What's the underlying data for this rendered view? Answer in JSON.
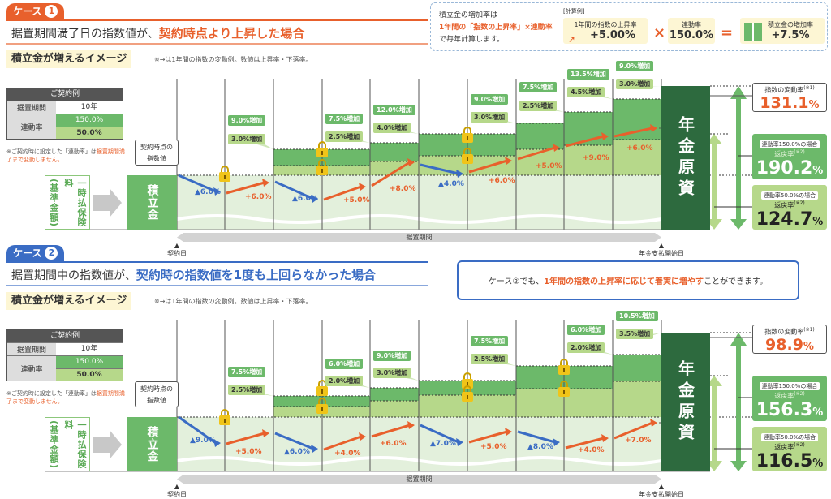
{
  "top_box": {
    "line1": "積立金の増加率は",
    "line2": "1年間の「指数の上昇率」×連動率",
    "line3": "で毎年計算します。",
    "calc_label": "[計算例]",
    "term1_label": "1年間の指数の上昇率",
    "term1_value": "+5.00%",
    "times": "×",
    "term2_label": "連動率",
    "term2_value": "150.0%",
    "equals": "=",
    "result_label": "積立金の増加率",
    "result_value": "+7.5%"
  },
  "case2_message": {
    "a": "ケース②でも、",
    "b": "1年間の指数の上昇率に応じて着実に増やす",
    "c": "ことができます。"
  },
  "colors": {
    "orange": "#e8602c",
    "blue": "#3a6cc4",
    "dark_green": "#2d6a3e",
    "green": "#6cb96a",
    "light_green": "#b6d88a",
    "pale_green": "#e3f0dc",
    "lock": "#f0c419"
  },
  "cases": [
    {
      "tab": "ケース",
      "num": "1",
      "title_prefix": "据置期間満了日の指数値が、",
      "title_highlight": "契約時点より上昇した場合",
      "subtitle": "積立金が増えるイメージ",
      "note": "※→は1年間の指数の変動例。数値は上昇率・下落率。",
      "contract": {
        "header": "ご契約例",
        "period_label": "据置期間",
        "period_value": "10年",
        "rate_label": "連動率",
        "rate_high": "150.0%",
        "rate_low": "50.0%",
        "foot_a": "※ご契約時に設定した「連動率」は",
        "foot_b": "据置期間満了まで変動しません。"
      },
      "start_index_a": "契約時点の",
      "start_index_b": "指数値",
      "premium_label": "一時払保険料",
      "premium_sub": "(基準金額)",
      "accum_label": "積立金",
      "annuity_label": "年金原資",
      "yearly_changes": [
        "▲6.0%",
        "+6.0%",
        "▲6.0%",
        "+5.0%",
        "+8.0%",
        "▲4.0%",
        "+6.0%",
        "+5.0%",
        "+9.0%",
        "+6.0%"
      ],
      "increases": [
        {
          "year": 2,
          "high": "9.0%増加",
          "low": "3.0%増加"
        },
        {
          "year": 4,
          "high": "7.5%増加",
          "low": "2.5%増加"
        },
        {
          "year": 5,
          "high": "12.0%増加",
          "low": "4.0%増加"
        },
        {
          "year": 7,
          "high": "9.0%増加",
          "low": "3.0%増加"
        },
        {
          "year": 8,
          "high": "7.5%増加",
          "low": "2.5%増加"
        },
        {
          "year": 9,
          "high": "13.5%増加",
          "low": "4.5%増加"
        },
        {
          "year": 10,
          "high": "9.0%増加",
          "low": "3.0%増加"
        }
      ],
      "index_change": {
        "label": "指数の変動率",
        "note": "(※1)",
        "value": "131.1",
        "unit": "%"
      },
      "return_high": {
        "label": "連動率150.0%の場合",
        "title": "返戻率",
        "note": "(※2)",
        "value": "190.2",
        "unit": "%"
      },
      "return_low": {
        "label": "連動率50.0%の場合",
        "title": "返戻率",
        "note": "(※2)",
        "value": "124.7",
        "unit": "%"
      },
      "period_bar": "据置期間",
      "start_date": "契約日",
      "end_date": "年金支払開始日"
    },
    {
      "tab": "ケース",
      "num": "2",
      "title_prefix": "据置期間中の指数値が、",
      "title_highlight": "契約時の指数値を1度も上回らなかった場合",
      "subtitle": "積立金が増えるイメージ",
      "note": "※→は1年間の指数の変動例。数値は上昇率・下落率。",
      "contract": {
        "header": "ご契約例",
        "period_label": "据置期間",
        "period_value": "10年",
        "rate_label": "連動率",
        "rate_high": "150.0%",
        "rate_low": "50.0%",
        "foot_a": "※ご契約時に設定した「連動率」は",
        "foot_b": "据置期間満了まで変動しません。"
      },
      "start_index_a": "契約時点の",
      "start_index_b": "指数値",
      "premium_label": "一時払保険料",
      "premium_sub": "(基準金額)",
      "accum_label": "積立金",
      "annuity_label": "年金原資",
      "yearly_changes": [
        "▲9.0%",
        "+5.0%",
        "▲6.0%",
        "+4.0%",
        "+6.0%",
        "▲7.0%",
        "+5.0%",
        "▲8.0%",
        "+4.0%",
        "+7.0%"
      ],
      "increases": [
        {
          "year": 2,
          "high": "7.5%増加",
          "low": "2.5%増加"
        },
        {
          "year": 4,
          "high": "6.0%増加",
          "low": "2.0%増加"
        },
        {
          "year": 5,
          "high": "9.0%増加",
          "low": "3.0%増加"
        },
        {
          "year": 7,
          "high": "7.5%増加",
          "low": "2.5%増加"
        },
        {
          "year": 9,
          "high": "6.0%増加",
          "low": "2.0%増加"
        },
        {
          "year": 10,
          "high": "10.5%増加",
          "low": "3.5%増加"
        }
      ],
      "index_change": {
        "label": "指数の変動率",
        "note": "(※1)",
        "value": "98.9",
        "unit": "%"
      },
      "return_high": {
        "label": "連動率150.0%の場合",
        "title": "返戻率",
        "note": "(※2)",
        "value": "156.3",
        "unit": "%"
      },
      "return_low": {
        "label": "連動率50.0%の場合",
        "title": "返戻率",
        "note": "(※2)",
        "value": "116.5",
        "unit": "%"
      },
      "period_bar": "据置期間",
      "start_date": "契約日",
      "end_date": "年金支払開始日"
    }
  ]
}
